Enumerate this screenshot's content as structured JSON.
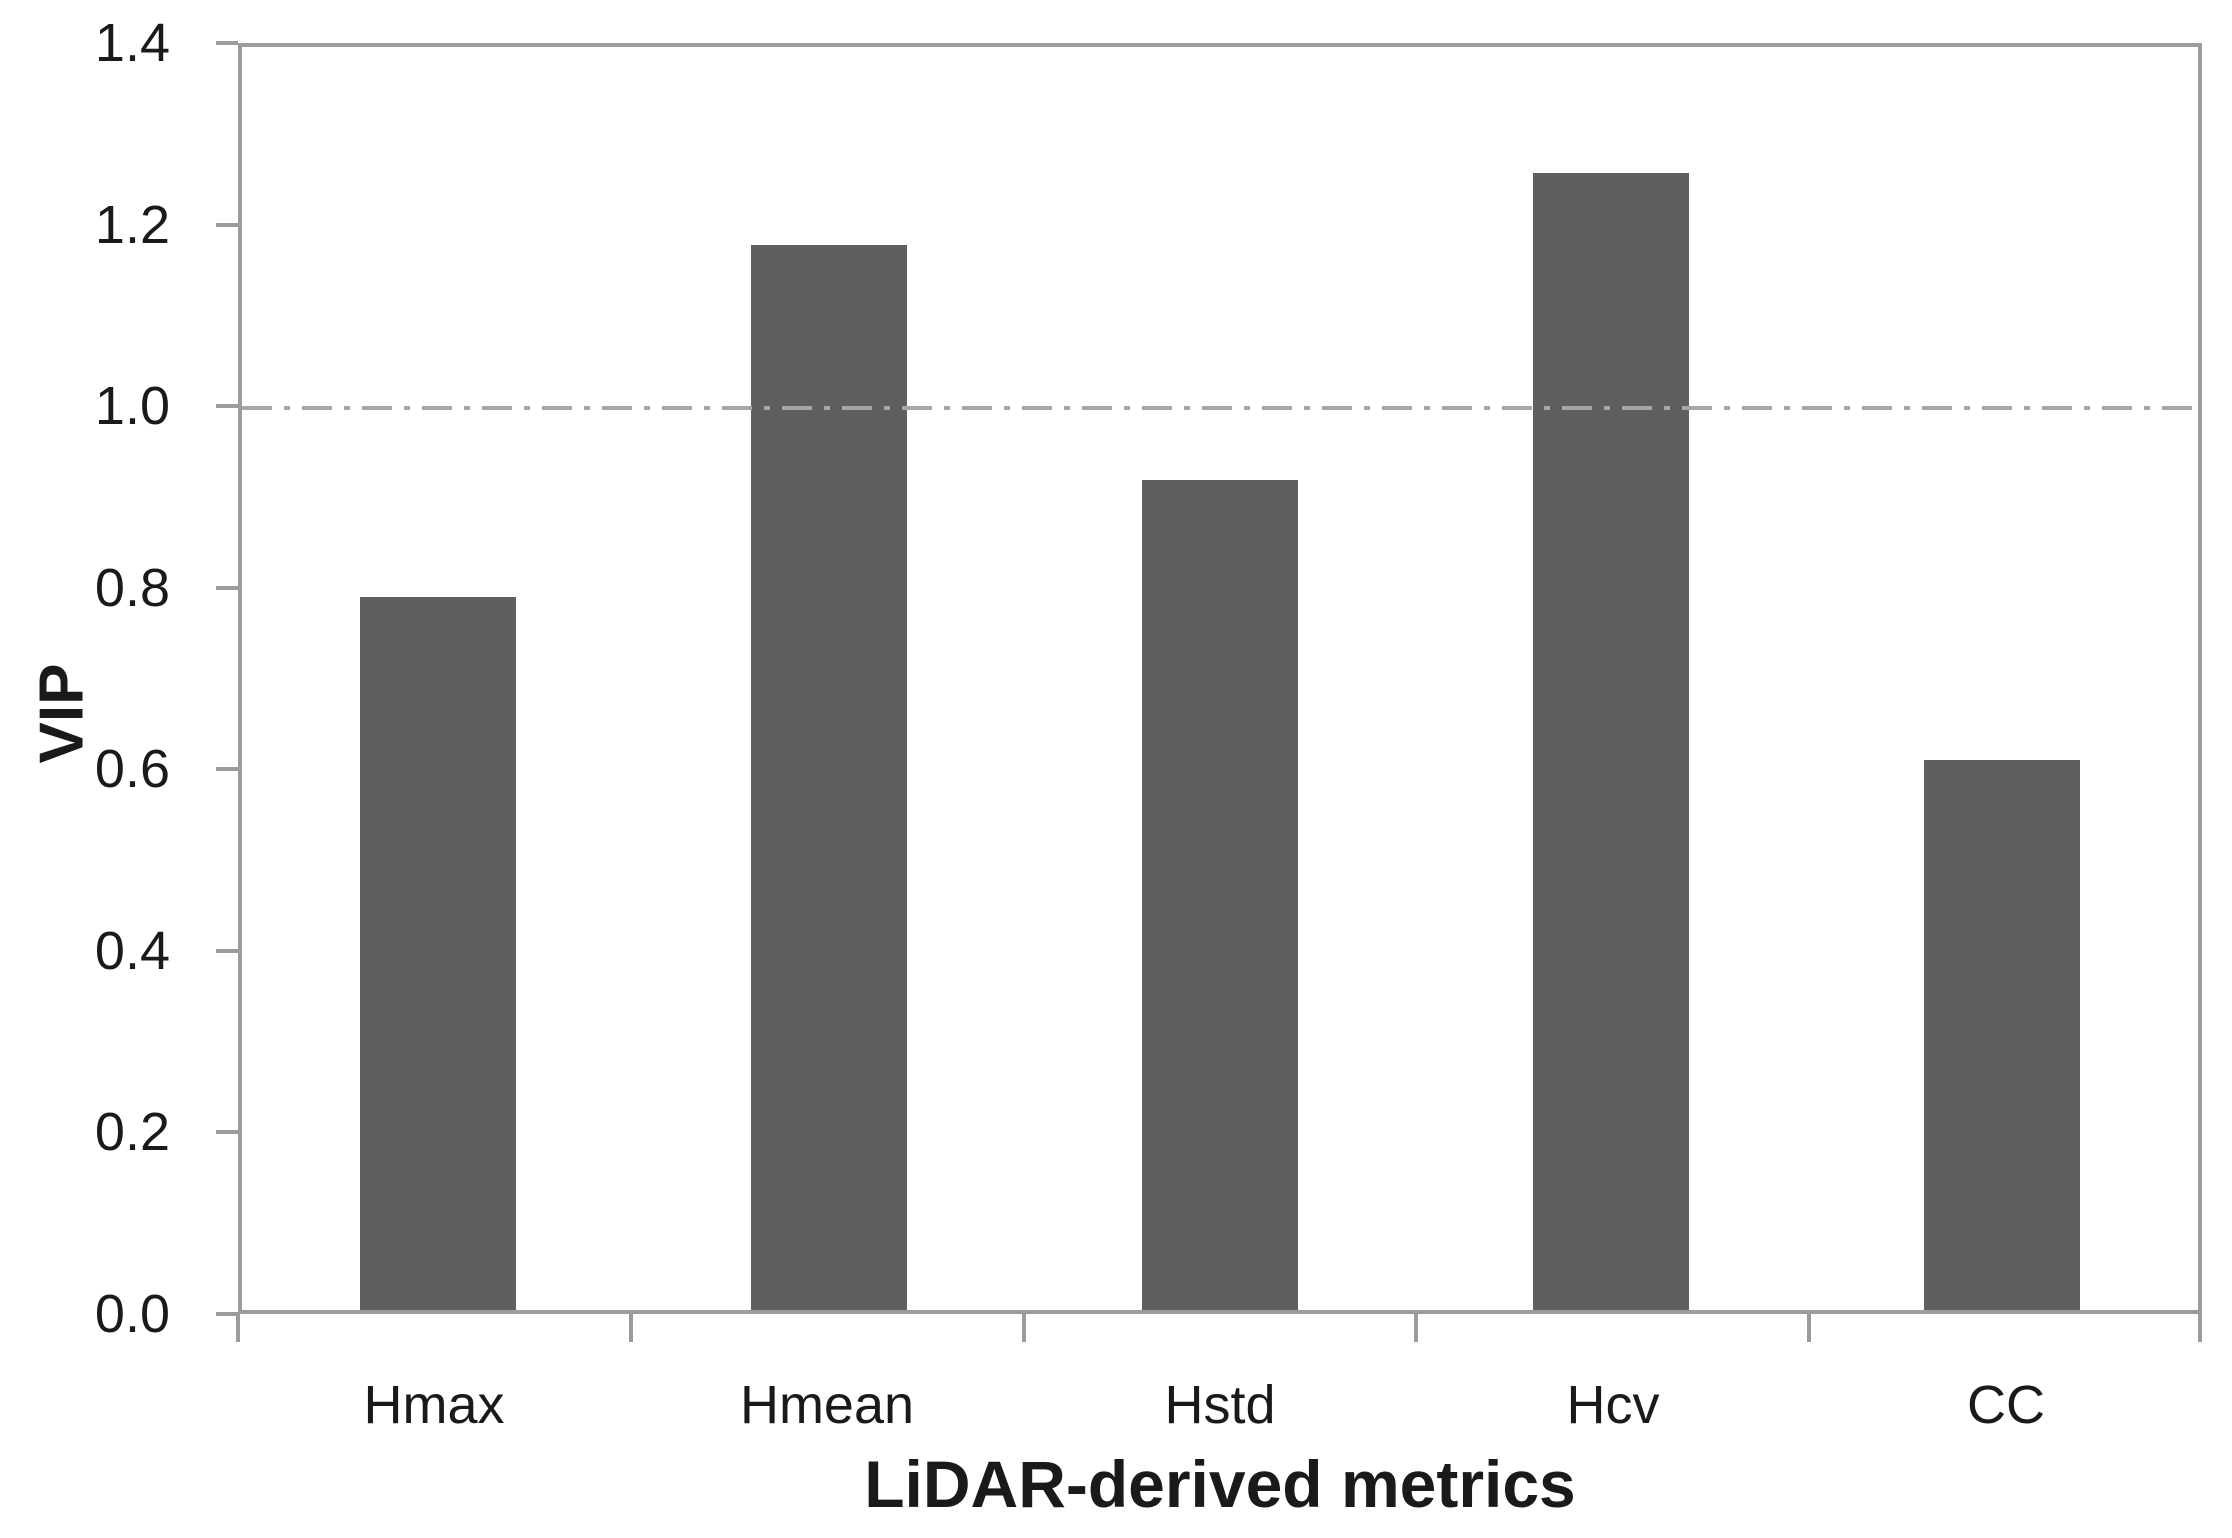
{
  "chart_data": {
    "type": "bar",
    "title": "",
    "categories": [
      "Hmax",
      "Hmean",
      "Hstd",
      "Hcv",
      "CC"
    ],
    "values": [
      0.79,
      1.18,
      0.92,
      1.26,
      0.61
    ],
    "xlabel": "LiDAR-derived metrics",
    "ylabel": "VIP",
    "ylim": [
      0.0,
      1.4
    ],
    "ytick_step": 0.2,
    "ytick_labels": [
      "0.0",
      "0.2",
      "0.4",
      "0.6",
      "0.8",
      "1.0",
      "1.2",
      "1.4"
    ],
    "reference_line": {
      "value": 1.0,
      "style": "dash-dot",
      "color": "#a6a6a6"
    },
    "legend": null,
    "grid": false,
    "colors": {
      "bar": "#5f5f5f",
      "axis": "#9c9c9c",
      "text": "#1a1a1a",
      "background": "#ffffff"
    }
  }
}
